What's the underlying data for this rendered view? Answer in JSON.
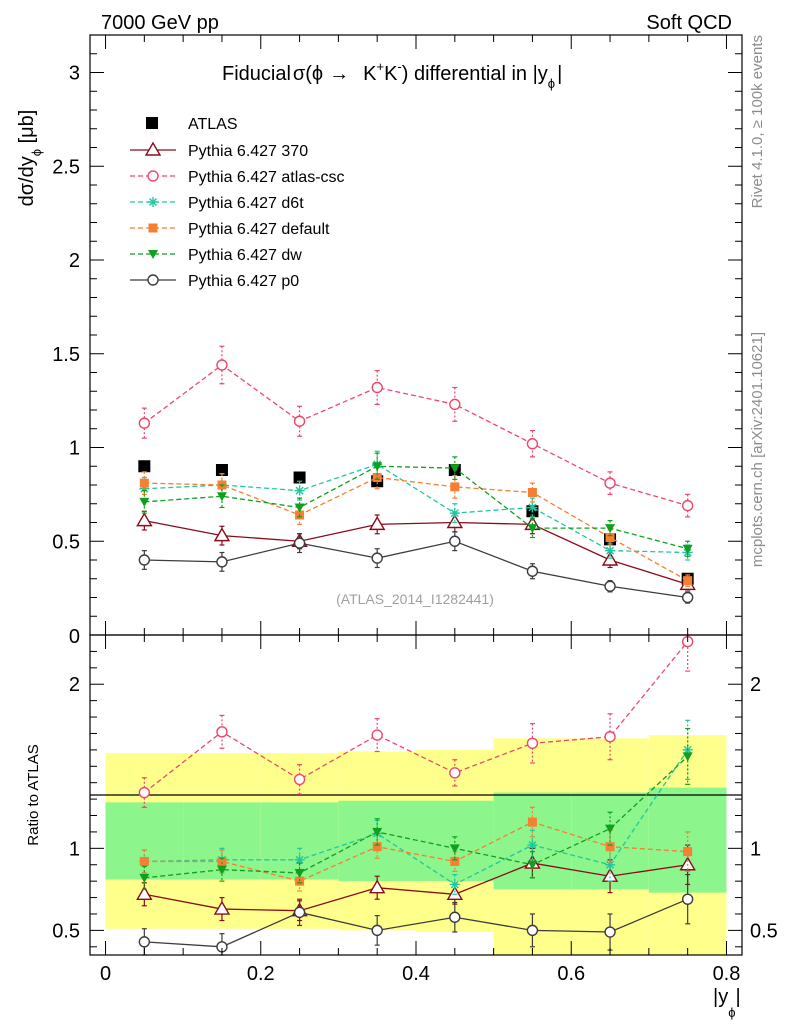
{
  "chart_data": {
    "type": "line",
    "header_left": "7000 GeV pp",
    "header_right": "Soft QCD",
    "title": {
      "prefix": "Fiducial",
      "sigma": "σ(ϕ",
      "arrow": "→",
      "K1": "K",
      "K1_sup": "+",
      "K2": "K",
      "K2_sup": "-",
      "suffix": ") differential in |y",
      "suffix_sub": "ϕ",
      "close": "|"
    },
    "ylabel_main": {
      "pre": "dσ/dy",
      "sub": "ϕ",
      "post": " [μb]"
    },
    "ylabel_ratio": "Ratio to ATLAS",
    "xlabel": {
      "pre": "|y",
      "sub": "ϕ",
      "post": "|"
    },
    "watermark": "(ATLAS_2014_I1282441)",
    "side_rivet": "Rivet 4.1.0, ≥ 100k events",
    "side_mcplots": "mcplots.cern.ch [arXiv:2401.10621]",
    "xlim": [
      -0.02,
      0.82
    ],
    "ylim_main": [
      0,
      3.2
    ],
    "ylim_ratio": [
      0.35,
      2.3
    ],
    "main_yticks": [
      {
        "v": 0.5,
        "label": "0.5"
      },
      {
        "v": 1,
        "label": "1"
      },
      {
        "v": 1.5,
        "label": "1.5"
      },
      {
        "v": 2,
        "label": "2"
      },
      {
        "v": 2.5,
        "label": "2.5"
      },
      {
        "v": 3,
        "label": "3"
      }
    ],
    "main_zero_label": "0",
    "ratio_yticks": [
      {
        "v": 0.5,
        "label": "0.5"
      },
      {
        "v": 1,
        "label": "1"
      },
      {
        "v": 2,
        "label": "2"
      }
    ],
    "xticks": [
      {
        "v": 0,
        "label": "0"
      },
      {
        "v": 0.2,
        "label": "0.2"
      },
      {
        "v": 0.4,
        "label": "0.4"
      },
      {
        "v": 0.6,
        "label": "0.6"
      },
      {
        "v": 0.8,
        "label": "0.8"
      }
    ],
    "bin_edges": [
      0,
      0.1,
      0.2,
      0.3,
      0.4,
      0.5,
      0.6,
      0.7,
      0.8
    ],
    "x": [
      0.05,
      0.15,
      0.25,
      0.35,
      0.45,
      0.55,
      0.65,
      0.75
    ],
    "data": {
      "name": "ATLAS",
      "values": [
        0.9,
        0.88,
        0.84,
        0.82,
        0.88,
        0.66,
        0.51,
        0.3
      ],
      "band_green": [
        [
          0.81,
          1.28
        ],
        [
          0.81,
          1.28
        ],
        [
          0.81,
          1.28
        ],
        [
          0.8,
          1.29
        ],
        [
          0.8,
          1.29
        ],
        [
          0.75,
          1.34
        ],
        [
          0.75,
          1.34
        ],
        [
          0.73,
          1.37
        ]
      ],
      "band_yellow": [
        [
          0.51,
          1.58
        ],
        [
          0.51,
          1.58
        ],
        [
          0.51,
          1.58
        ],
        [
          0.5,
          1.59
        ],
        [
          0.49,
          1.6
        ],
        [
          0.35,
          1.67
        ],
        [
          0.35,
          1.67
        ],
        [
          0.35,
          1.69
        ]
      ]
    },
    "series": [
      {
        "name": "Pythia 6.427 370",
        "color": "#8b0b1a",
        "dashed": false,
        "marker": "triangle-open",
        "values": [
          0.61,
          0.53,
          0.5,
          0.59,
          0.6,
          0.59,
          0.4,
          0.27
        ],
        "errors": [
          0.05,
          0.05,
          0.04,
          0.05,
          0.05,
          0.05,
          0.04,
          0.03
        ],
        "ratio": [
          0.72,
          0.63,
          0.62,
          0.76,
          0.72,
          0.91,
          0.83,
          0.9
        ],
        "ratio_err": [
          0.07,
          0.07,
          0.06,
          0.07,
          0.06,
          0.09,
          0.1,
          0.12
        ]
      },
      {
        "name": "Pythia 6.427 atlas-csc",
        "color": "#f0466e",
        "dashed": true,
        "marker": "circle-open",
        "values": [
          1.13,
          1.44,
          1.14,
          1.32,
          1.23,
          1.02,
          0.81,
          0.69
        ],
        "errors": [
          0.08,
          0.1,
          0.08,
          0.09,
          0.09,
          0.07,
          0.06,
          0.06
        ],
        "ratio": [
          1.34,
          1.71,
          1.42,
          1.69,
          1.46,
          1.64,
          1.68,
          2.26
        ],
        "ratio_err": [
          0.09,
          0.1,
          0.09,
          0.1,
          0.08,
          0.12,
          0.14,
          0.18
        ]
      },
      {
        "name": "Pythia 6.427 d6t",
        "color": "#1ec8a0",
        "dashed": true,
        "marker": "star",
        "values": [
          0.78,
          0.8,
          0.77,
          0.91,
          0.65,
          0.68,
          0.45,
          0.44
        ],
        "errors": [
          0.06,
          0.06,
          0.05,
          0.07,
          0.05,
          0.05,
          0.04,
          0.04
        ],
        "ratio": [
          0.92,
          0.93,
          0.93,
          1.09,
          0.78,
          1.02,
          0.9,
          1.6
        ],
        "ratio_err": [
          0.07,
          0.07,
          0.07,
          0.08,
          0.06,
          0.09,
          0.1,
          0.18
        ]
      },
      {
        "name": "Pythia 6.427 default",
        "color": "#f57f32",
        "dashed": true,
        "marker": "square",
        "values": [
          0.81,
          0.8,
          0.64,
          0.84,
          0.79,
          0.76,
          0.52,
          0.29
        ],
        "errors": [
          0.06,
          0.06,
          0.05,
          0.06,
          0.06,
          0.05,
          0.04,
          0.03
        ],
        "ratio": [
          0.92,
          0.92,
          0.8,
          1.01,
          0.92,
          1.16,
          1.01,
          0.98
        ],
        "ratio_err": [
          0.07,
          0.07,
          0.06,
          0.07,
          0.06,
          0.09,
          0.1,
          0.12
        ]
      },
      {
        "name": "Pythia 6.427 dw",
        "color": "#0fa01e",
        "dashed": true,
        "marker": "triangle-down",
        "values": [
          0.71,
          0.74,
          0.68,
          0.9,
          0.89,
          0.57,
          0.57,
          0.46
        ],
        "errors": [
          0.06,
          0.06,
          0.05,
          0.07,
          0.06,
          0.05,
          0.04,
          0.04
        ],
        "ratio": [
          0.82,
          0.87,
          0.85,
          1.1,
          1.0,
          0.9,
          1.12,
          1.56
        ],
        "ratio_err": [
          0.07,
          0.07,
          0.06,
          0.08,
          0.07,
          0.08,
          0.1,
          0.17
        ]
      },
      {
        "name": "Pythia 6.427 p0",
        "color": "#3c3c3c",
        "dashed": false,
        "marker": "circle-open",
        "values": [
          0.4,
          0.39,
          0.49,
          0.41,
          0.5,
          0.34,
          0.26,
          0.2
        ],
        "errors": [
          0.05,
          0.05,
          0.05,
          0.05,
          0.05,
          0.04,
          0.03,
          0.03
        ],
        "ratio": [
          0.43,
          0.4,
          0.61,
          0.5,
          0.58,
          0.5,
          0.49,
          0.69
        ],
        "ratio_err": [
          0.08,
          0.08,
          0.08,
          0.09,
          0.09,
          0.1,
          0.11,
          0.15
        ]
      }
    ]
  }
}
